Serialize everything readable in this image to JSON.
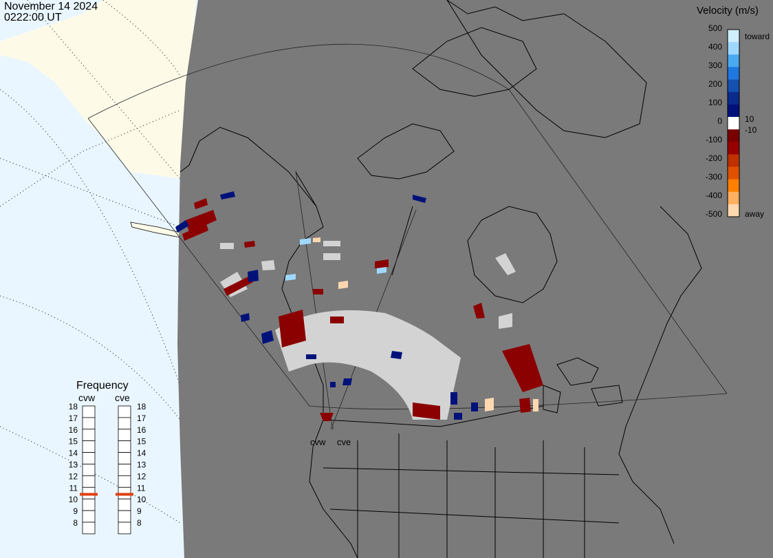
{
  "header": {
    "date": "November 14 2024",
    "time": "0222:00 UT"
  },
  "velocity_scale": {
    "title": "Velocity (m/s)",
    "ticks": [
      "500",
      "400",
      "300",
      "200",
      "100",
      "0",
      "-100",
      "-200",
      "-300",
      "-400",
      "-500"
    ],
    "toward_label": "toward",
    "away_label": "away",
    "threshold_pos": "10",
    "threshold_neg": "-10",
    "colors": [
      "#cfeeff",
      "#9fd8ff",
      "#4aaaf0",
      "#1f78e0",
      "#1450b0",
      "#0a2a8c",
      "#00127a",
      "#ffffff",
      "#7a0000",
      "#980000",
      "#c03000",
      "#e05200",
      "#ff8000",
      "#ffb060",
      "#ffd8b0"
    ]
  },
  "frequency": {
    "title": "Frequency",
    "radars": [
      "cvw",
      "cve"
    ],
    "ticks": [
      "18",
      "17",
      "16",
      "15",
      "14",
      "13",
      "12",
      "11",
      "10",
      "9",
      "8"
    ],
    "cvw_mhz": 10.9,
    "cve_mhz": 10.9,
    "marker_color": "#e04010"
  },
  "map": {
    "radar_labels": [
      "cvw",
      "cve"
    ],
    "colors": {
      "land": "#7a7a7a",
      "ocean": "#eaf6ff",
      "daylight_land": "#fdfbe8",
      "ground_scatter": "#d3d3d3",
      "coast": "#000000"
    }
  }
}
